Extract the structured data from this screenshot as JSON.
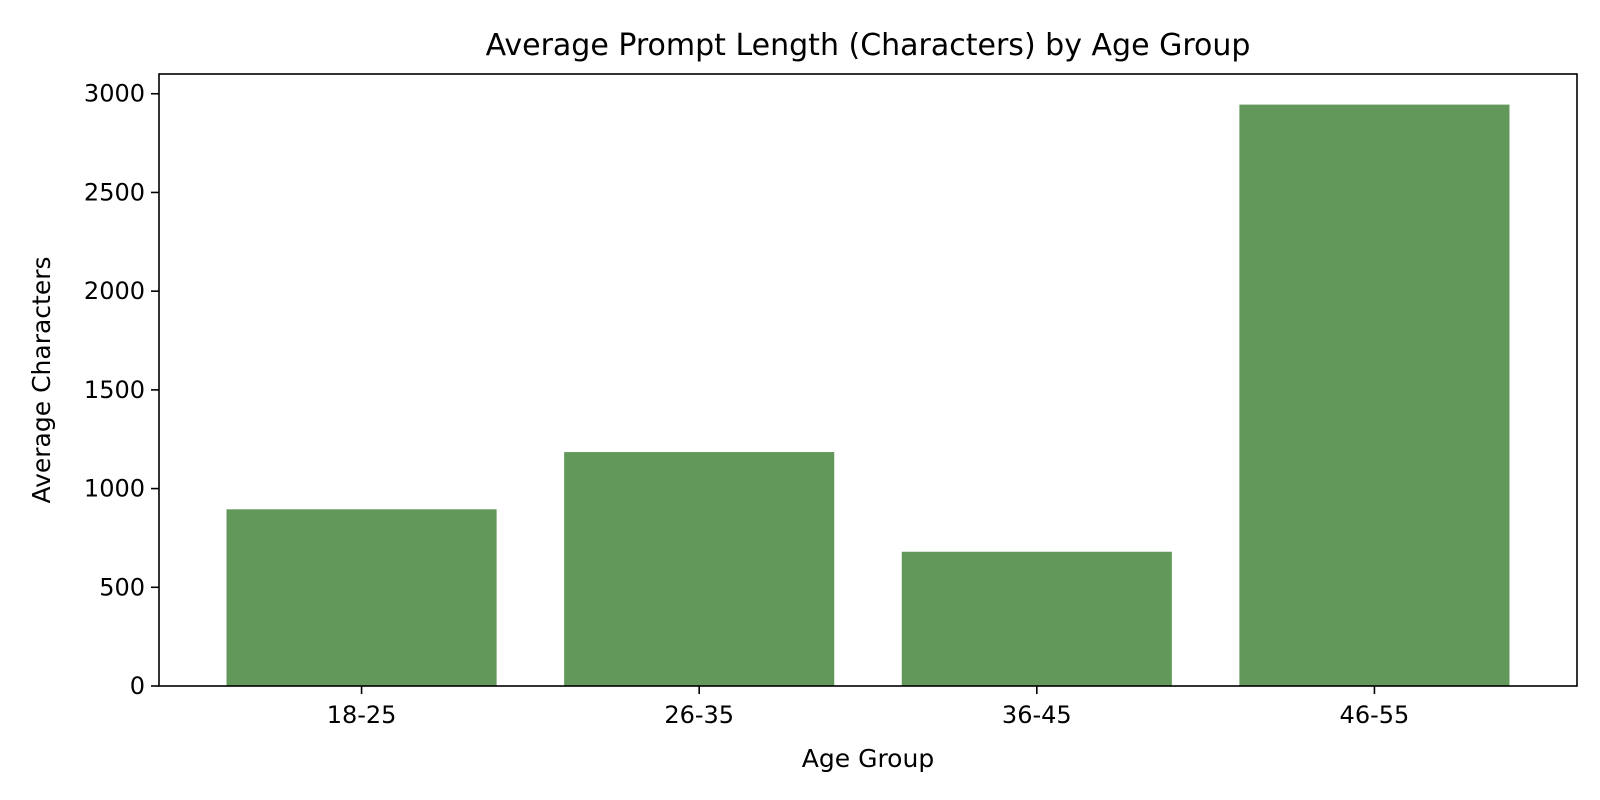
{
  "chart_data": {
    "type": "bar",
    "title": "Average Prompt Length (Characters) by Age Group",
    "xlabel": "Age Group",
    "ylabel": "Average Characters",
    "categories": [
      "18-25",
      "26-35",
      "36-45",
      "46-55"
    ],
    "values": [
      895,
      1185,
      680,
      2945
    ],
    "ylim": [
      0,
      3100
    ],
    "yticks": [
      0,
      500,
      1000,
      1500,
      2000,
      2500,
      3000
    ],
    "bar_color": "#62985a",
    "grid": false,
    "legend": false
  }
}
